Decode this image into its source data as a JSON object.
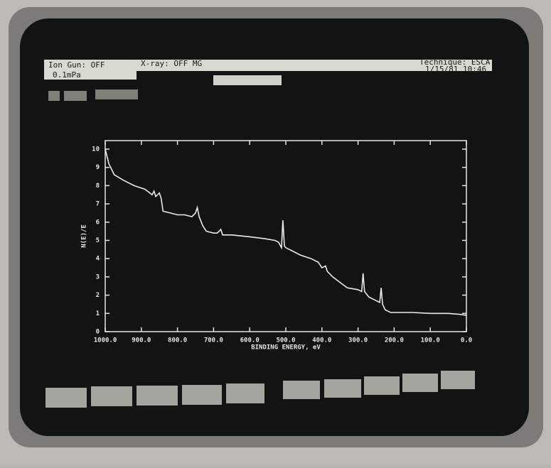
{
  "header": {
    "ion_gun": "Ion Gun: OFF",
    "pressure": "0.1mPa",
    "xray": "X-ray: OFF MG",
    "technique": "Technique: ESCA",
    "datetime": "1/15/81 10:46"
  },
  "chart_data": {
    "type": "line",
    "ylabel": "N(E)/E",
    "xlabel": "BINDING ENERGY, eV",
    "color": "#e8ece4",
    "x": [
      1000,
      990,
      975,
      950,
      920,
      890,
      870,
      865,
      860,
      850,
      845,
      840,
      820,
      800,
      780,
      760,
      750,
      745,
      740,
      730,
      720,
      700,
      690,
      680,
      675,
      650,
      600,
      560,
      530,
      520,
      512,
      508,
      504,
      500,
      480,
      460,
      430,
      410,
      400,
      390,
      385,
      370,
      350,
      330,
      300,
      290,
      286,
      282,
      270,
      250,
      240,
      236,
      232,
      225,
      210,
      150,
      100,
      50,
      20,
      0
    ],
    "values": [
      10,
      9.2,
      8.6,
      8.3,
      8.0,
      7.8,
      7.5,
      7.7,
      7.4,
      7.6,
      7.3,
      6.6,
      6.5,
      6.4,
      6.4,
      6.3,
      6.5,
      6.8,
      6.3,
      5.8,
      5.5,
      5.4,
      5.4,
      5.6,
      5.3,
      5.3,
      5.2,
      5.1,
      5.0,
      4.9,
      4.6,
      6.1,
      4.7,
      4.6,
      4.4,
      4.2,
      4.0,
      3.8,
      3.5,
      3.6,
      3.3,
      3.0,
      2.7,
      2.4,
      2.3,
      2.2,
      3.2,
      2.2,
      1.9,
      1.7,
      1.6,
      2.4,
      1.5,
      1.2,
      1.05,
      1.05,
      1.0,
      1.0,
      0.95,
      0.9
    ],
    "xlim": [
      1000,
      0
    ],
    "ylim": [
      0,
      10
    ],
    "xticks": [
      {
        "value": 1000,
        "label": "1000.0"
      },
      {
        "value": 900,
        "label": "900.0"
      },
      {
        "value": 800,
        "label": "800.0"
      },
      {
        "value": 700,
        "label": "700.0"
      },
      {
        "value": 600,
        "label": "600.0"
      },
      {
        "value": 500,
        "label": "500.0"
      },
      {
        "value": 400,
        "label": "400.0"
      },
      {
        "value": 300,
        "label": "300.0"
      },
      {
        "value": 200,
        "label": "200.0"
      },
      {
        "value": 100,
        "label": "100.0"
      },
      {
        "value": 0,
        "label": "0.0"
      }
    ],
    "yticks": [
      0,
      1,
      2,
      3,
      4,
      5,
      6,
      7,
      8,
      9,
      10
    ]
  }
}
